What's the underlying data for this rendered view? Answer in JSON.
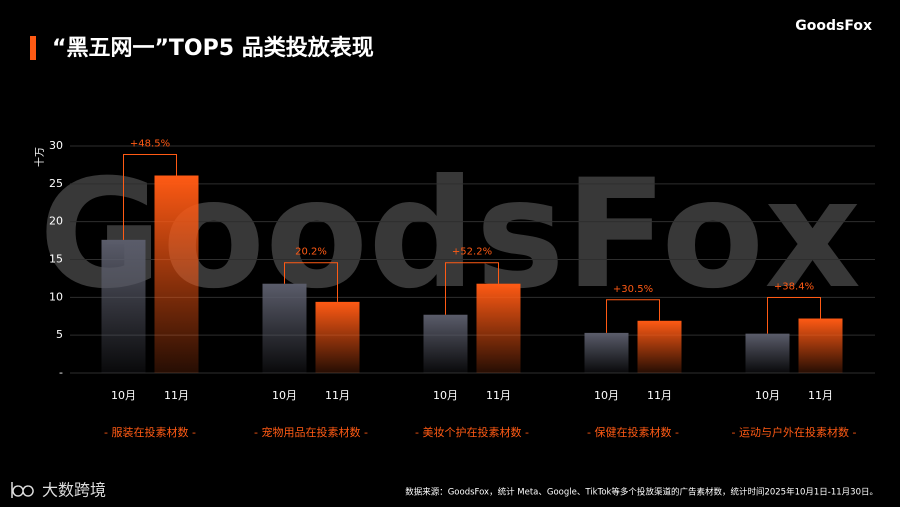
{
  "chart_data": {
    "type": "bar",
    "title": "“黑五网一”TOP5 品类投放表现",
    "brand": "GoodsFox",
    "watermark": "GoodsFox",
    "y_unit": "十万",
    "categories": [
      "- 服装在投素材数 -",
      "- 宠物用品在投素材数 -",
      "- 美妆个护在投素材数 -",
      "- 保健在投素材数 -",
      "- 运动与户外在投素材数 -"
    ],
    "series": [
      {
        "name": "10月",
        "color": "#5a5c6a",
        "values": [
          17.6,
          11.8,
          7.7,
          5.3,
          5.2
        ]
      },
      {
        "name": "11月",
        "color": "#ff5a14",
        "values": [
          26.1,
          9.4,
          11.8,
          6.9,
          7.2
        ]
      }
    ],
    "changes": [
      "+48.5%",
      "20.2%",
      "+52.2%",
      "+30.5%",
      "+38.4%"
    ],
    "ylim": [
      0,
      30
    ],
    "yticks": [
      {
        "value": 0,
        "label": "-"
      },
      5,
      10,
      15,
      20,
      25,
      30
    ],
    "grid": true,
    "source": "数据来源：GoodsFox，统计 Meta、Google、TikTok等多个投放渠道的广告素材数，统计时间2025年10月1日-11月30日。",
    "footer_brand": "大数跨境"
  }
}
